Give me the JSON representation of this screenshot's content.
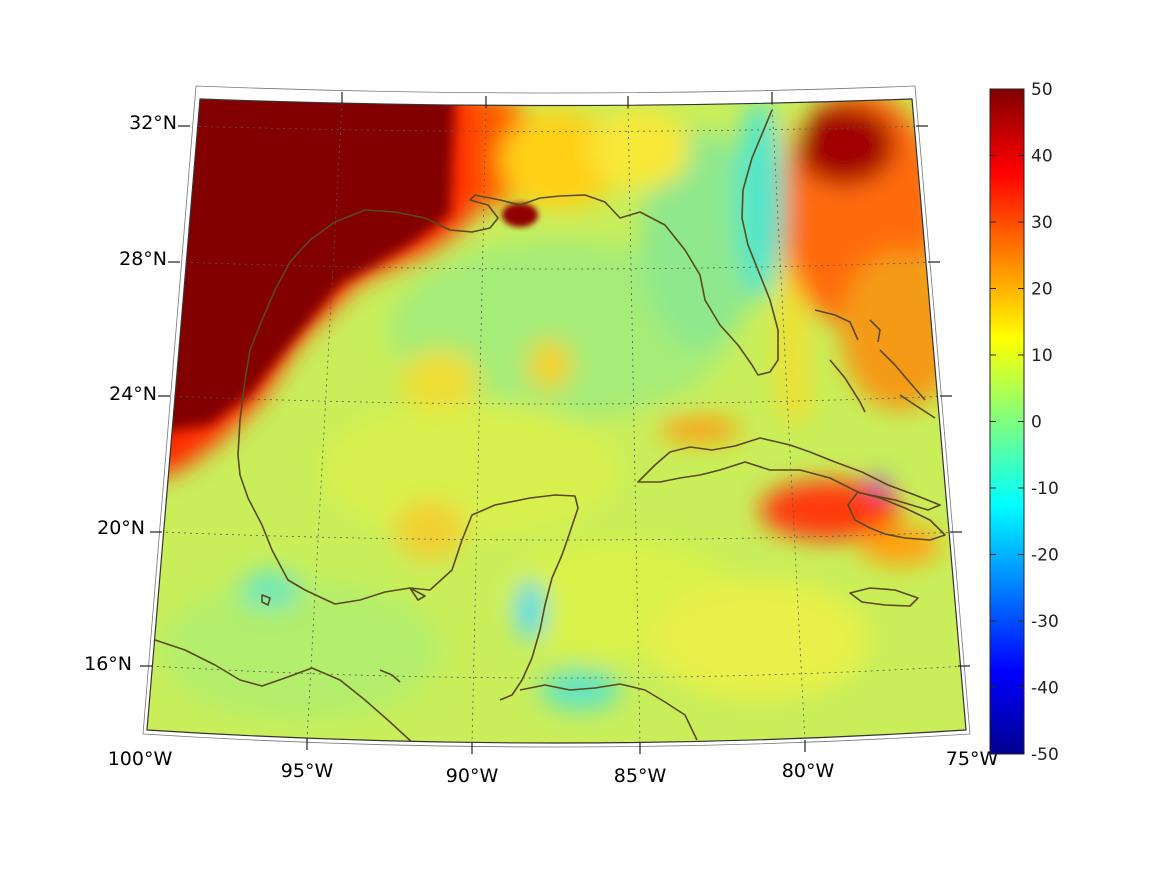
{
  "figure": {
    "type": "map",
    "projection": "conic",
    "extent": {
      "lon_min": -100,
      "lon_max": -75,
      "lat_min": 14,
      "lat_max": 33
    },
    "graticule": "dotted",
    "coastline_color": "#5a4a1a",
    "colormap": "jet"
  },
  "axes": {
    "lat_labels": [
      "32°N",
      "28°N",
      "24°N",
      "20°N",
      "16°N"
    ],
    "lon_labels": [
      "100°W",
      "95°W",
      "90°W",
      "85°W",
      "80°W",
      "75°W"
    ]
  },
  "colorbar": {
    "ticks": [
      "50",
      "40",
      "30",
      "20",
      "10",
      "0",
      "-10",
      "-20",
      "-30",
      "-40",
      "-50"
    ],
    "range": [
      -50,
      50
    ]
  }
}
